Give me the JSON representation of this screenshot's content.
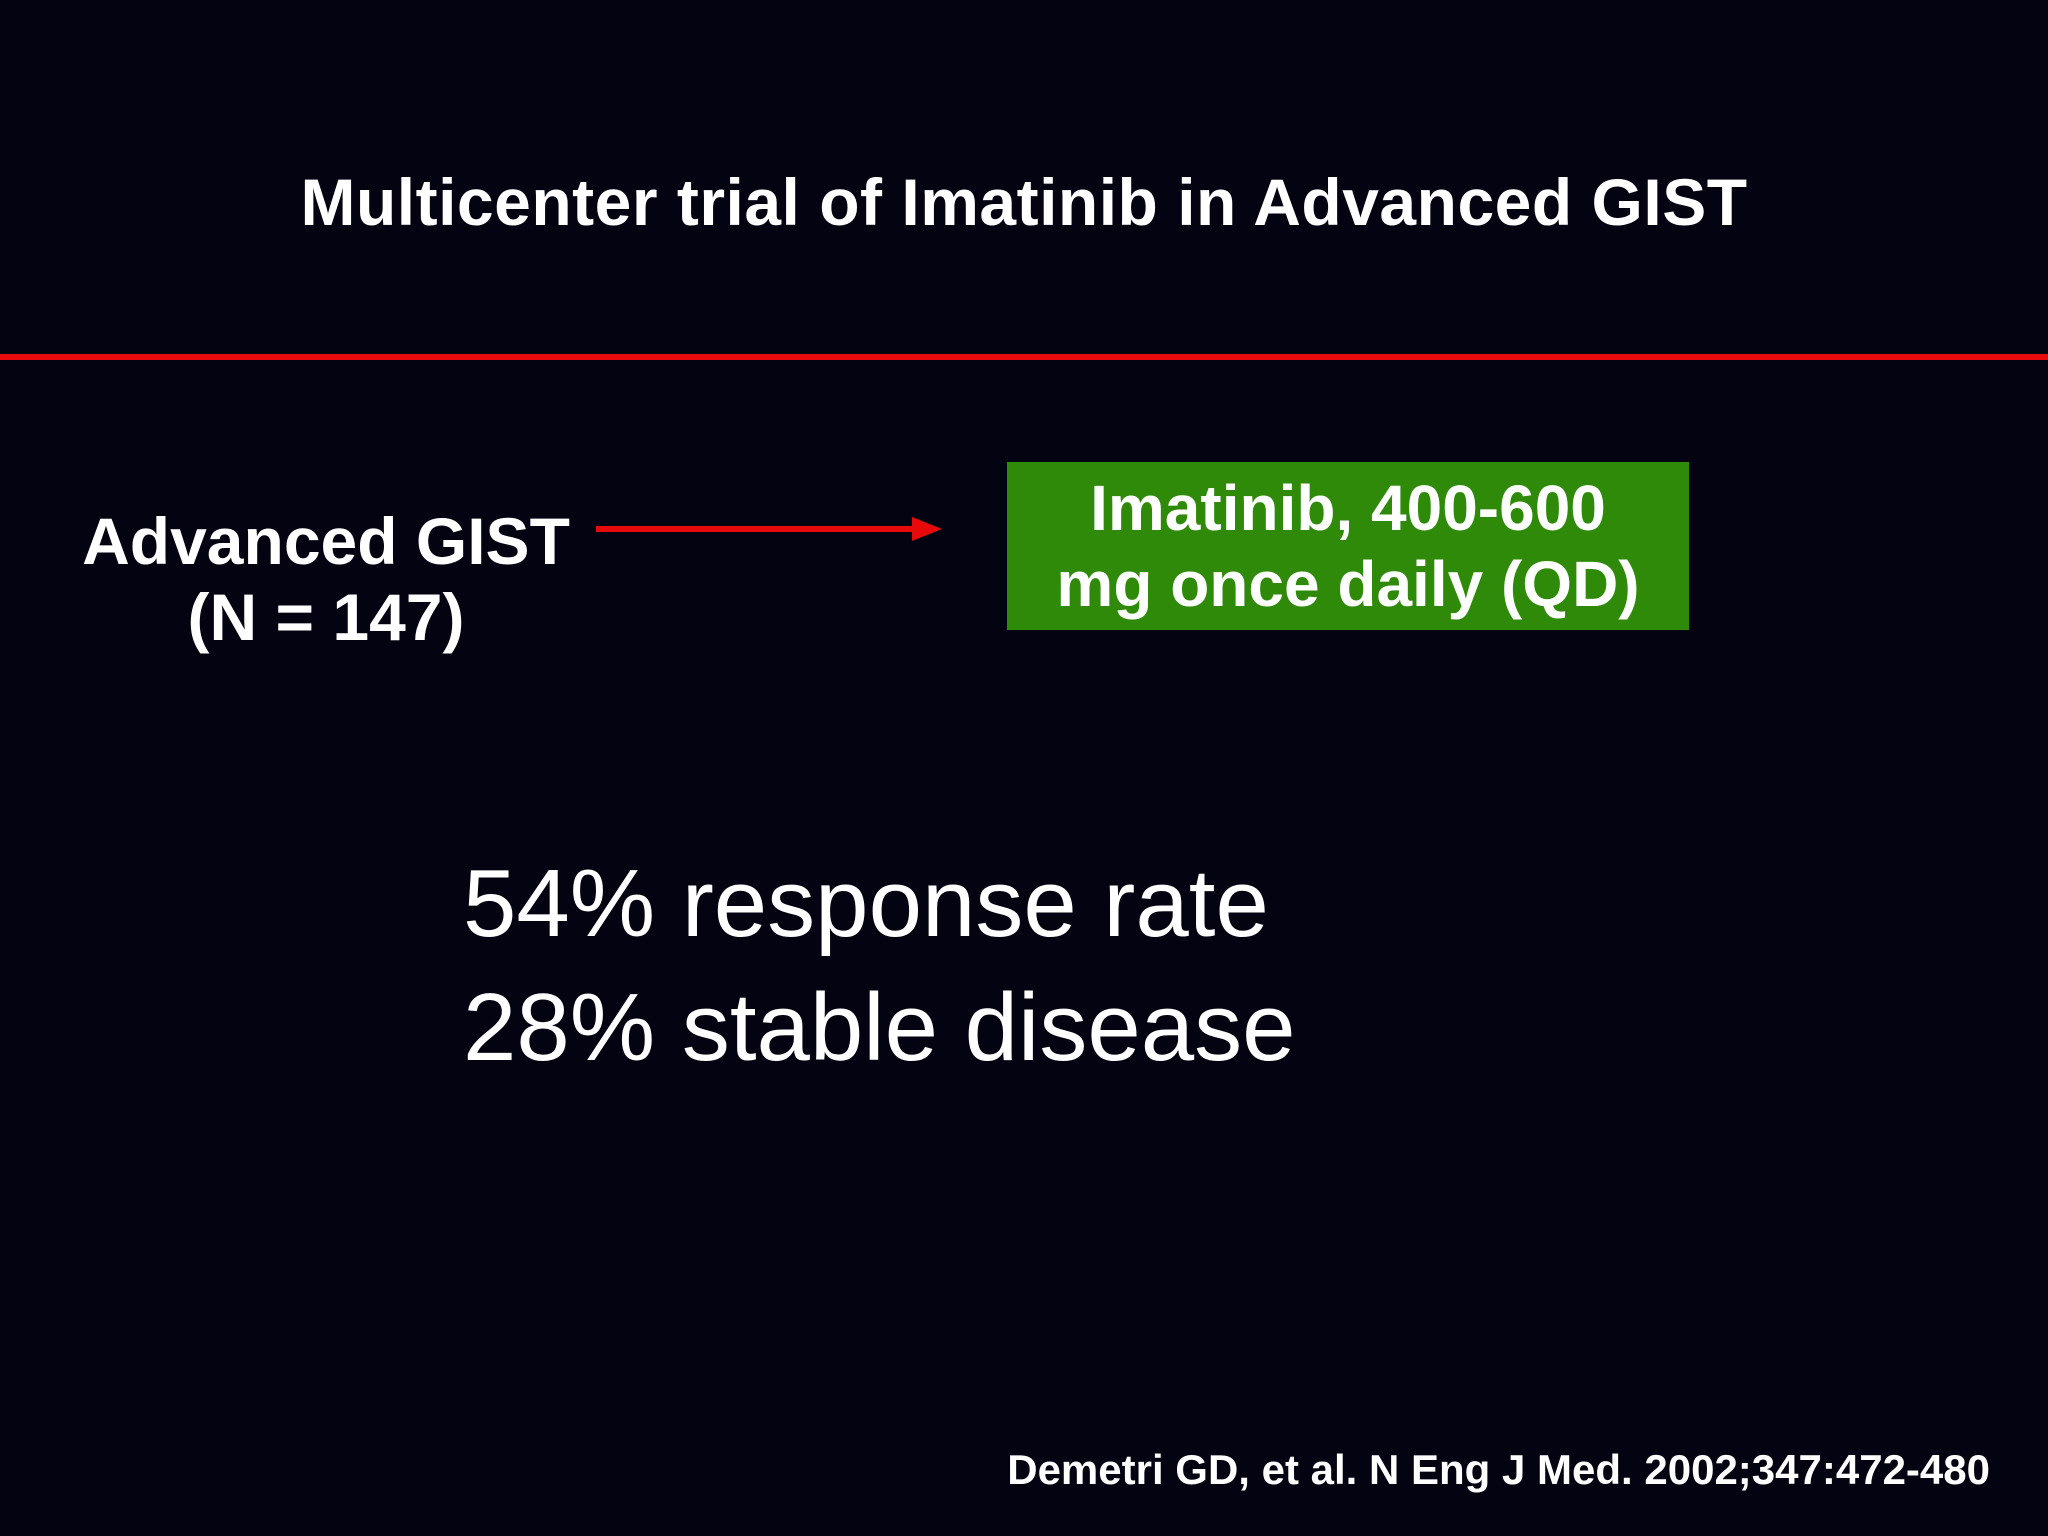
{
  "slide": {
    "title": "Multicenter trial of Imatinib in Advanced GIST",
    "population": {
      "line1": "Advanced GIST",
      "line2": "(N = 147)"
    },
    "treatment": {
      "line1": "Imatinib, 400-600",
      "line2": "mg once daily (QD)"
    },
    "results": [
      "54% response rate",
      "28% stable disease"
    ],
    "citation": "Demetri GD, et al. N Eng J Med. 2002;347:472-480"
  },
  "colors": {
    "background": "#030311",
    "accent_red": "#e80a0a",
    "box_green": "#2e8a08",
    "text": "#ffffff"
  }
}
